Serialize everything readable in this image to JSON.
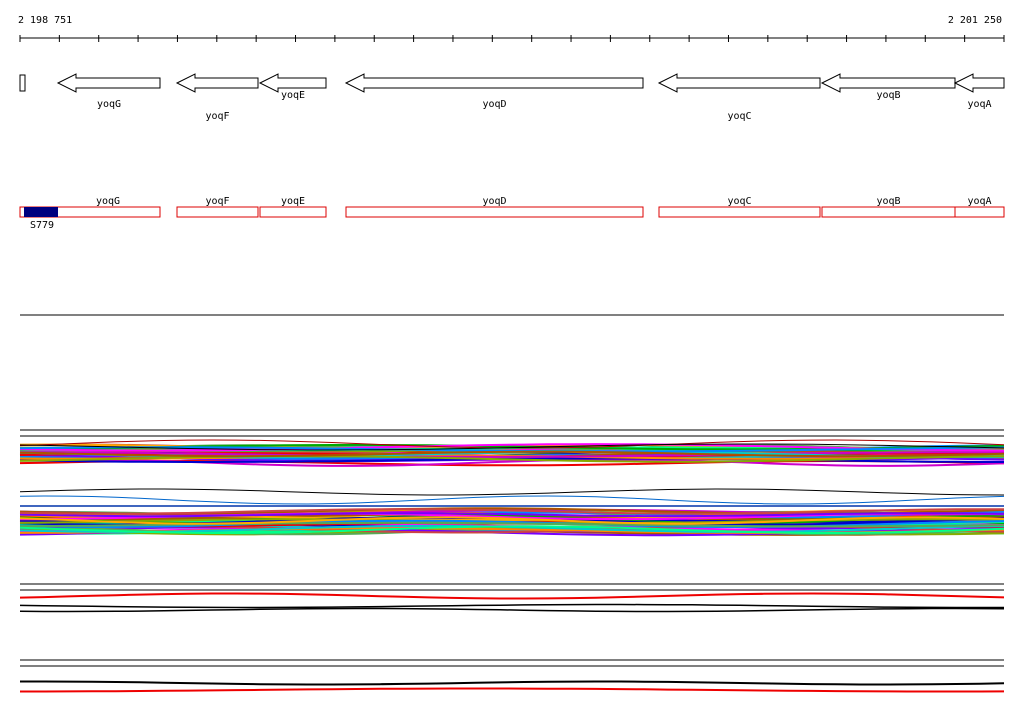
{
  "ruler": {
    "start": "2 198 751",
    "end": "2 201 250"
  },
  "genes": [
    {
      "label": "yoqG"
    },
    {
      "label": "yoqF"
    },
    {
      "label": "yoqE"
    },
    {
      "label": "yoqD"
    },
    {
      "label": "yoqC"
    },
    {
      "label": "yoqB"
    },
    {
      "label": "yoqA"
    }
  ],
  "features": {
    "genes": [
      "yoqG",
      "yoqF",
      "yoqE",
      "yoqD",
      "yoqC",
      "yoqB",
      "yoqA"
    ],
    "site": "S779"
  }
}
